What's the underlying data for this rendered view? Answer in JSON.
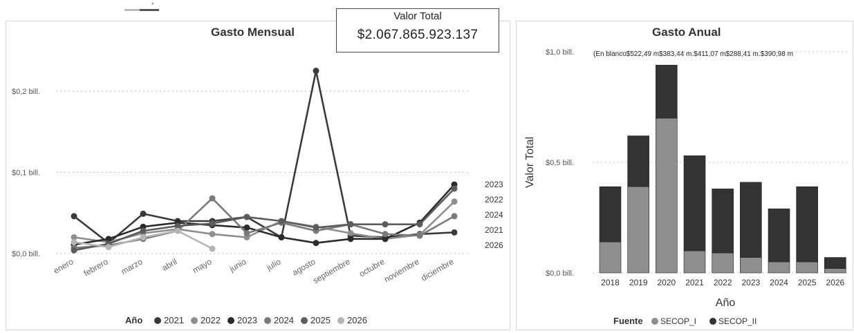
{
  "kpi": {
    "label": "Valor Total",
    "value": "$2.067.865.923.137"
  },
  "slicer_mark": "*",
  "chart_data": [
    {
      "type": "line",
      "title": "Gasto Mensual",
      "categories": [
        "enero",
        "febrero",
        "marzo",
        "abril",
        "mayo",
        "junio",
        "julio",
        "agosto",
        "septiembre",
        "octubre",
        "noviembre",
        "diciembre"
      ],
      "y_ticks": [
        {
          "value": 0,
          "label": "$0,0 bill."
        },
        {
          "value": 0.1,
          "label": "$0,1 bill."
        },
        {
          "value": 0.2,
          "label": "$0,2 bill."
        }
      ],
      "ylim": [
        0,
        0.245
      ],
      "grid": true,
      "legend": {
        "title": "Año",
        "position": "bottom"
      },
      "series": [
        {
          "name": "2021",
          "color": "#3a3a3a",
          "end_label": "2021",
          "values": [
            0.046,
            0.013,
            0.049,
            0.04,
            0.04,
            0.045,
            0.02,
            0.225,
            0.022,
            0.02,
            0.024,
            0.026
          ]
        },
        {
          "name": "2022",
          "color": "#8e8e8e",
          "end_label": "2022",
          "values": [
            0.02,
            0.014,
            0.025,
            0.03,
            0.024,
            0.02,
            0.04,
            0.033,
            0.025,
            0.018,
            0.023,
            0.064
          ]
        },
        {
          "name": "2023",
          "color": "#2b2b2b",
          "end_label": "2023",
          "values": [
            0.011,
            0.018,
            0.033,
            0.038,
            0.035,
            0.032,
            0.02,
            0.013,
            0.018,
            0.018,
            0.038,
            0.085
          ]
        },
        {
          "name": "2024",
          "color": "#7a7a7a",
          "end_label": "2024",
          "values": [
            0.007,
            0.01,
            0.018,
            0.028,
            0.068,
            0.025,
            0.038,
            0.028,
            0.036,
            0.024,
            0.022,
            0.046
          ]
        },
        {
          "name": "2025",
          "color": "#5c5c5c",
          "end_label": "",
          "values": [
            0.004,
            0.012,
            0.028,
            0.034,
            0.037,
            0.045,
            0.04,
            0.032,
            0.036,
            0.036,
            0.036,
            0.08
          ]
        },
        {
          "name": "2026",
          "color": "#b5b5b5",
          "end_label": "2026",
          "values": [
            0.014,
            0.008,
            0.02,
            0.028,
            0.006,
            null,
            null,
            null,
            null,
            null,
            null,
            null
          ]
        }
      ]
    },
    {
      "type": "bar",
      "stacked": true,
      "title": "Gasto Anual",
      "xlabel": "Año",
      "ylabel": "Valor Total",
      "categories": [
        "2018",
        "2019",
        "2020",
        "2021",
        "2022",
        "2023",
        "2024",
        "2025",
        "2026"
      ],
      "y_ticks": [
        {
          "value": 0,
          "label": "$0,0 bill."
        },
        {
          "value": 0.5,
          "label": "$0,5 bill."
        },
        {
          "value": 1.0,
          "label": "$1,0 bill."
        }
      ],
      "ylim": [
        0,
        1.0
      ],
      "grid": true,
      "top_labels": "(En blanco$522,49 m$383,44 m.$411,07 m$288,41 m.$390,98 m",
      "legend": {
        "title": "Fuente",
        "position": "bottom"
      },
      "series": [
        {
          "name": "SECOP_I",
          "color": "#8e8e8e",
          "values": [
            0.14,
            0.39,
            0.7,
            0.1,
            0.09,
            0.07,
            0.05,
            0.05,
            0.02
          ]
        },
        {
          "name": "SECOP_II",
          "color": "#333333",
          "values": [
            0.25,
            0.23,
            0.24,
            0.43,
            0.29,
            0.34,
            0.24,
            0.34,
            0.05
          ]
        }
      ]
    }
  ]
}
